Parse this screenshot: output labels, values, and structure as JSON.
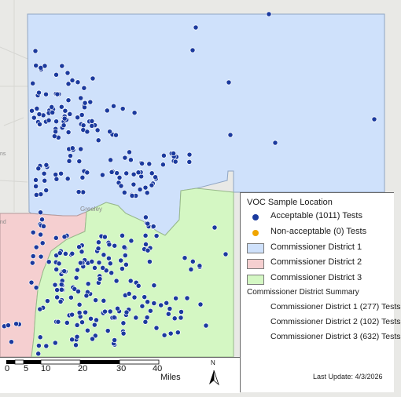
{
  "legend": {
    "title": "VOC Sample Location",
    "acceptable": "Acceptable (1011) Tests",
    "nonacceptable": "Non-acceptable (0) Tests",
    "district1": "Commissioner District 1",
    "district2": "Commissioner District 2",
    "district3": "Commissioner District 3",
    "summary_title": "Commissioner District Summary",
    "summary1": "Commissioner District 1 (277) Tests",
    "summary2": "Commissioner District 2 (102) Tests",
    "summary3": "Commissioner District 3 (632) Tests"
  },
  "map": {
    "city_label": "Greeley",
    "edge_labels": [
      "ns",
      "nd"
    ]
  },
  "scale": {
    "ticks": [
      "0",
      "5",
      "10",
      "20",
      "30",
      "40"
    ],
    "unit": "Miles",
    "north": "N"
  },
  "footer": {
    "last_update": "Last Update: 4/3/2026"
  },
  "colors": {
    "district1": "#cfe1fb",
    "district2": "#f5cfd0",
    "district3": "#d4f7c3",
    "acceptable": "#1b3a9e",
    "nonacceptable": "#f0a500",
    "basemap": "#e9e9e6"
  }
}
